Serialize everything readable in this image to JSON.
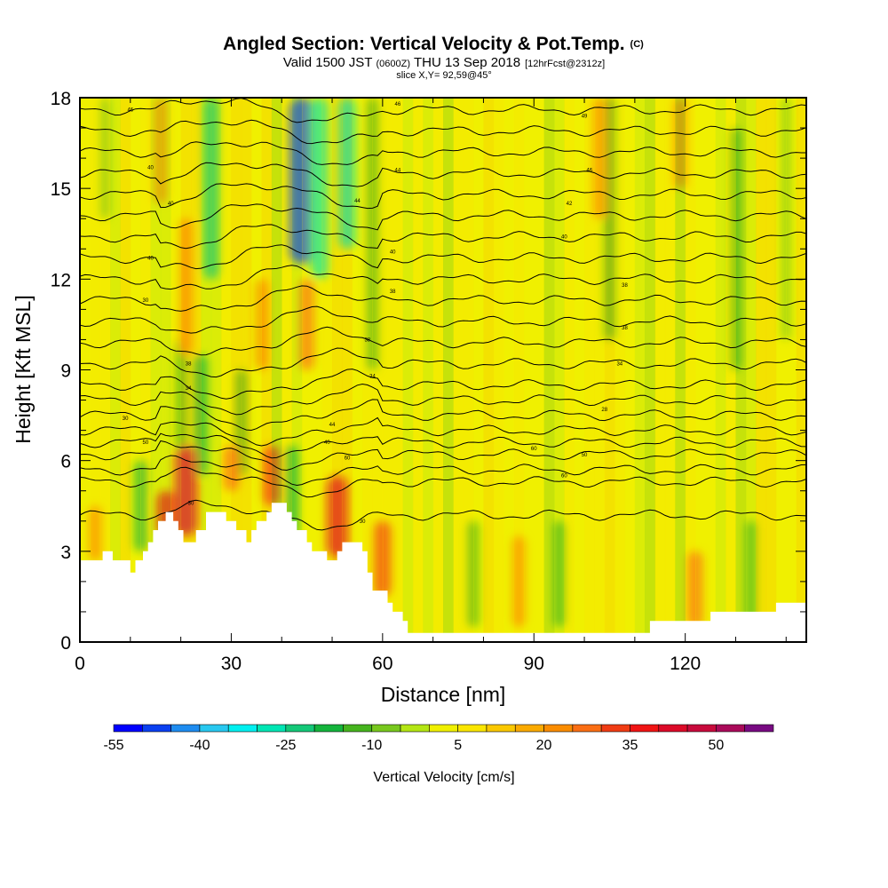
{
  "title": {
    "main": "Angled Section: Vertical Velocity & Pot.Temp.",
    "main_suffix": "(C)",
    "valid_a": "Valid 1500 JST",
    "valid_z": "(0600Z)",
    "valid_b": "THU 13 Sep 2018",
    "fcst": "[12hrFcst@2312z]",
    "slice": "slice X,Y= 92,59@45°"
  },
  "chart_data": {
    "type": "heatmap",
    "xlabel": "Distance [nm]",
    "ylabel": "Height [Kft MSL]",
    "xlim": [
      0,
      144
    ],
    "ylim": [
      0,
      18
    ],
    "x_ticks": [
      {
        "value": 0,
        "label": "0"
      },
      {
        "value": 30,
        "label": "30"
      },
      {
        "value": 60,
        "label": "60"
      },
      {
        "value": 90,
        "label": "90"
      },
      {
        "value": 120,
        "label": "120"
      }
    ],
    "y_ticks": [
      {
        "value": 0,
        "label": "0"
      },
      {
        "value": 3,
        "label": "3"
      },
      {
        "value": 6,
        "label": "6"
      },
      {
        "value": 9,
        "label": "9"
      },
      {
        "value": 12,
        "label": "12"
      },
      {
        "value": 15,
        "label": "15"
      },
      {
        "value": 18,
        "label": "18"
      }
    ],
    "colorbar": {
      "label": "Vertical Velocity [cm/s]",
      "colors": [
        "#0000ff",
        "#0a40f0",
        "#1e8cf0",
        "#28c8f0",
        "#00f0f0",
        "#00e6b4",
        "#14c878",
        "#14b43c",
        "#46b41e",
        "#78c81e",
        "#b4e614",
        "#f0f000",
        "#fae600",
        "#fac800",
        "#faaa00",
        "#fa8c00",
        "#fa6e14",
        "#f03c14",
        "#f01414",
        "#dc0a28",
        "#c80a3c",
        "#aa0a5a",
        "#780a82"
      ],
      "boundaries": [
        -55,
        -50,
        -45,
        -40,
        -35,
        -30,
        -25,
        -20,
        -15,
        -10,
        -5,
        0,
        5,
        10,
        15,
        20,
        25,
        30,
        35,
        40,
        45,
        50,
        55,
        60
      ],
      "tick_labels": [
        {
          "value": -55,
          "label": "-55"
        },
        {
          "value": -40,
          "label": "-40"
        },
        {
          "value": -25,
          "label": "-25"
        },
        {
          "value": -10,
          "label": "-10"
        },
        {
          "value": 5,
          "label": "5"
        },
        {
          "value": 20,
          "label": "20"
        },
        {
          "value": 35,
          "label": "35"
        },
        {
          "value": 50,
          "label": "50"
        }
      ]
    },
    "terrain_height_kft": [
      [
        0,
        2.7
      ],
      [
        4.5,
        2.7
      ],
      [
        4.5,
        3.0
      ],
      [
        6.5,
        3.0
      ],
      [
        6.5,
        2.7
      ],
      [
        10,
        2.7
      ],
      [
        10,
        2.3
      ],
      [
        11,
        2.3
      ],
      [
        11,
        2.7
      ],
      [
        12.5,
        2.7
      ],
      [
        12.5,
        3.0
      ],
      [
        13.5,
        3.0
      ],
      [
        13.5,
        3.3
      ],
      [
        14.5,
        3.3
      ],
      [
        14.5,
        3.7
      ],
      [
        15.5,
        3.7
      ],
      [
        15.5,
        4.0
      ],
      [
        17,
        4.0
      ],
      [
        17,
        4.3
      ],
      [
        18.5,
        4.3
      ],
      [
        18.5,
        4.0
      ],
      [
        19.5,
        4.0
      ],
      [
        19.5,
        3.7
      ],
      [
        20.5,
        3.7
      ],
      [
        20.5,
        3.3
      ],
      [
        23,
        3.3
      ],
      [
        23,
        3.7
      ],
      [
        25,
        3.7
      ],
      [
        25,
        4.3
      ],
      [
        29,
        4.3
      ],
      [
        29,
        4.0
      ],
      [
        31,
        4.0
      ],
      [
        31,
        3.7
      ],
      [
        33,
        3.7
      ],
      [
        33,
        3.3
      ],
      [
        34,
        3.3
      ],
      [
        34,
        3.7
      ],
      [
        35,
        3.7
      ],
      [
        35,
        4.0
      ],
      [
        37,
        4.0
      ],
      [
        37,
        4.3
      ],
      [
        38,
        4.3
      ],
      [
        38,
        4.6
      ],
      [
        41,
        4.6
      ],
      [
        41,
        4.3
      ],
      [
        42,
        4.3
      ],
      [
        42,
        4.0
      ],
      [
        43,
        4.0
      ],
      [
        43,
        3.7
      ],
      [
        45,
        3.7
      ],
      [
        45,
        3.3
      ],
      [
        46,
        3.3
      ],
      [
        46,
        3.0
      ],
      [
        49,
        3.0
      ],
      [
        49,
        2.7
      ],
      [
        51,
        2.7
      ],
      [
        51,
        3.0
      ],
      [
        52,
        3.0
      ],
      [
        52,
        3.3
      ],
      [
        56,
        3.3
      ],
      [
        56,
        3.0
      ],
      [
        57,
        3.0
      ],
      [
        57,
        2.3
      ],
      [
        58,
        2.3
      ],
      [
        58,
        1.7
      ],
      [
        61,
        1.7
      ],
      [
        61,
        1.3
      ],
      [
        62,
        1.3
      ],
      [
        62,
        1.0
      ],
      [
        64,
        1.0
      ],
      [
        64,
        0.7
      ],
      [
        65,
        0.7
      ],
      [
        65,
        0.3
      ],
      [
        113,
        0.3
      ],
      [
        113,
        0.7
      ],
      [
        125,
        0.7
      ],
      [
        125,
        1.0
      ],
      [
        138,
        1.0
      ],
      [
        138,
        1.3
      ],
      [
        144,
        1.3
      ]
    ],
    "theta_contour_baselines_kft": [
      4.2,
      5.3,
      5.7,
      6.2,
      6.6,
      7.0,
      7.5,
      8.0,
      8.5,
      9.2,
      9.9,
      10.6,
      11.3,
      12.0,
      12.7,
      13.4,
      14.1,
      14.8,
      15.5,
      16.2,
      16.9,
      17.6
    ],
    "theta_contour_labels": [
      {
        "label": "30",
        "x": 56,
        "y": 4.0
      },
      {
        "label": "30",
        "x": 22,
        "y": 4.6
      },
      {
        "label": "60",
        "x": 96,
        "y": 5.5
      },
      {
        "label": "50",
        "x": 100,
        "y": 6.2
      },
      {
        "label": "60",
        "x": 90,
        "y": 6.4
      },
      {
        "label": "60",
        "x": 53,
        "y": 6.1
      },
      {
        "label": "40",
        "x": 49,
        "y": 6.6
      },
      {
        "label": "50",
        "x": 13,
        "y": 6.6
      },
      {
        "label": "44",
        "x": 50,
        "y": 7.2
      },
      {
        "label": "30",
        "x": 9,
        "y": 7.4
      },
      {
        "label": "28",
        "x": 104,
        "y": 7.7
      },
      {
        "label": "34",
        "x": 21.5,
        "y": 8.4
      },
      {
        "label": "38",
        "x": 21.5,
        "y": 9.2
      },
      {
        "label": "34",
        "x": 58,
        "y": 8.8
      },
      {
        "label": "34",
        "x": 107,
        "y": 9.2
      },
      {
        "label": "38",
        "x": 57,
        "y": 10.0
      },
      {
        "label": "38",
        "x": 108,
        "y": 10.4
      },
      {
        "label": "30",
        "x": 13,
        "y": 11.3
      },
      {
        "label": "38",
        "x": 62,
        "y": 11.6
      },
      {
        "label": "38",
        "x": 108,
        "y": 11.8
      },
      {
        "label": "40",
        "x": 14,
        "y": 12.7
      },
      {
        "label": "40",
        "x": 62,
        "y": 12.9
      },
      {
        "label": "40",
        "x": 96,
        "y": 13.4
      },
      {
        "label": "40",
        "x": 18,
        "y": 14.5
      },
      {
        "label": "42",
        "x": 97,
        "y": 14.5
      },
      {
        "label": "44",
        "x": 55,
        "y": 14.6
      },
      {
        "label": "40",
        "x": 14,
        "y": 15.7
      },
      {
        "label": "44",
        "x": 63,
        "y": 15.6
      },
      {
        "label": "46",
        "x": 101,
        "y": 15.6
      },
      {
        "label": "46",
        "x": 10,
        "y": 17.6
      },
      {
        "label": "46",
        "x": 63,
        "y": 17.8
      },
      {
        "label": "49",
        "x": 100,
        "y": 17.4
      }
    ],
    "velocity_features": [
      {
        "x": 44,
        "y0": 12.5,
        "y1": 18.0,
        "value": -50
      },
      {
        "x": 47.5,
        "y0": 12.0,
        "y1": 18.0,
        "value": -30
      },
      {
        "x": 53,
        "y0": 13.0,
        "y1": 18.0,
        "value": -30
      },
      {
        "x": 26,
        "y0": 12.0,
        "y1": 18.0,
        "value": -25
      },
      {
        "x": 24,
        "y0": 5.5,
        "y1": 9.5,
        "value": -20
      },
      {
        "x": 20,
        "y0": 6.0,
        "y1": 10.0,
        "value": -15
      },
      {
        "x": 12,
        "y0": 3.0,
        "y1": 6.0,
        "value": -20
      },
      {
        "x": 32,
        "y0": 5.5,
        "y1": 9.0,
        "value": -15
      },
      {
        "x": 42,
        "y0": 3.5,
        "y1": 6.5,
        "value": -20
      },
      {
        "x": 58,
        "y0": 9.0,
        "y1": 18.0,
        "value": -15
      },
      {
        "x": 105,
        "y0": 10.0,
        "y1": 18.0,
        "value": -15
      },
      {
        "x": 95,
        "y0": 0.5,
        "y1": 4.0,
        "value": -15
      },
      {
        "x": 78,
        "y0": 0.5,
        "y1": 4.0,
        "value": -15
      },
      {
        "x": 133,
        "y0": 0.5,
        "y1": 4.0,
        "value": -12
      },
      {
        "x": 130,
        "y0": 9.0,
        "y1": 17.0,
        "value": -12
      },
      {
        "x": 140,
        "y0": 10.0,
        "y1": 18.0,
        "value": -10
      },
      {
        "x": 5,
        "y0": 14.0,
        "y1": 18.0,
        "value": -10
      },
      {
        "x": 21,
        "y0": 3.5,
        "y1": 6.5,
        "value": 45
      },
      {
        "x": 17,
        "y0": 3.5,
        "y1": 5.0,
        "value": 35
      },
      {
        "x": 51,
        "y0": 2.8,
        "y1": 5.5,
        "value": 40
      },
      {
        "x": 60,
        "y0": 1.5,
        "y1": 4.0,
        "value": 30
      },
      {
        "x": 38,
        "y0": 4.5,
        "y1": 6.5,
        "value": 30
      },
      {
        "x": 30,
        "y0": 5.0,
        "y1": 6.5,
        "value": 25
      },
      {
        "x": 16,
        "y0": 14.5,
        "y1": 18.0,
        "value": 20
      },
      {
        "x": 21,
        "y0": 9.5,
        "y1": 14.0,
        "value": 20
      },
      {
        "x": 36,
        "y0": 9.0,
        "y1": 12.0,
        "value": 20
      },
      {
        "x": 45,
        "y0": 9.0,
        "y1": 12.0,
        "value": 25
      },
      {
        "x": 103,
        "y0": 14.0,
        "y1": 18.0,
        "value": 20
      },
      {
        "x": 119,
        "y0": 15.0,
        "y1": 18.0,
        "value": 20
      },
      {
        "x": 87,
        "y0": 0.5,
        "y1": 3.5,
        "value": 20
      },
      {
        "x": 122,
        "y0": 0.5,
        "y1": 3.0,
        "value": 25
      },
      {
        "x": 3,
        "y0": 2.7,
        "y1": 4.5,
        "value": 20
      }
    ]
  }
}
